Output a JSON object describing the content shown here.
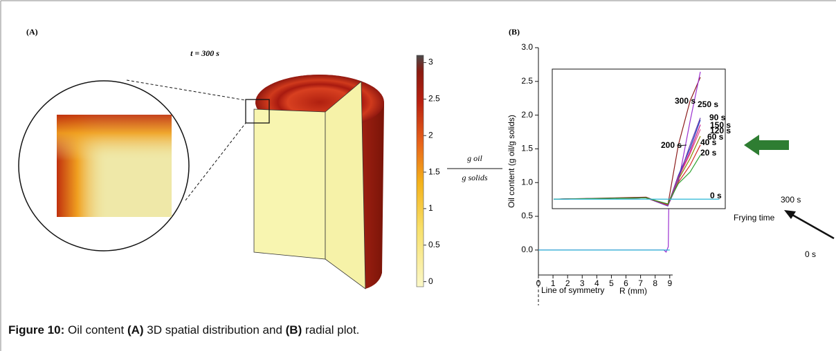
{
  "panel_a": {
    "label": "(A)",
    "time_label": "t = 300 s",
    "colorbar": {
      "lim": [
        -0.07,
        3.1
      ],
      "ticks": [
        0,
        0.5,
        1,
        1.5,
        2,
        2.5,
        3
      ],
      "unit_numerator": "g oil",
      "unit_denominator": "g solids"
    }
  },
  "chart_data": {
    "type": "line",
    "panel_label": "(B)",
    "x_label": "R (mm)",
    "y_label": "Oil content (g oil/g solids)",
    "xlim": [
      0,
      9.2
    ],
    "ylim": [
      -0.37,
      3.0
    ],
    "xticks": [
      0,
      1,
      2,
      3,
      4,
      5,
      6,
      7,
      8,
      9
    ],
    "yticks": [
      {
        "value": 0,
        "label": "0.0"
      },
      0.5,
      {
        "value": 1,
        "label": "1.0"
      },
      1.5,
      {
        "value": 2,
        "label": "2.0"
      },
      2.5,
      {
        "value": 3,
        "label": "3.0"
      }
    ],
    "x": [
      0,
      8.6,
      8.75,
      8.9,
      8.95,
      9.0
    ],
    "series": [
      {
        "name": "300 s",
        "color": "#9b30d0",
        "values": [
          0,
          0,
          -0.03,
          0.05,
          1.0,
          2.4
        ]
      },
      {
        "name": "0 s",
        "color": "#29b6d6",
        "values": [
          0,
          0,
          0,
          0,
          0,
          0
        ]
      }
    ],
    "annotations": [
      "Frying time",
      "Line of symmetry"
    ],
    "inset": {
      "type": "line",
      "xlim": [
        0,
        5.9
      ],
      "ylim": [
        0.61,
        2.67
      ],
      "x": [
        0.05,
        3.2,
        3.94,
        4.3,
        4.7,
        5.05,
        5.7
      ],
      "series": [
        {
          "name": "300 s",
          "color": "#8b1a1a",
          "values": [
            0.75,
            0.78,
            0.66,
            1.55,
            2.2,
            2.55,
            null
          ]
        },
        {
          "name": "250 s",
          "color": "#9b30d0",
          "values": [
            0.75,
            0.77,
            0.65,
            1.0,
            1.9,
            2.63,
            null
          ]
        },
        {
          "name": "90 s",
          "color": "#1f3fbf",
          "values": [
            0.75,
            0.77,
            0.66,
            1.1,
            1.5,
            1.92,
            null
          ]
        },
        {
          "name": "150 s",
          "color": "#c71585",
          "values": [
            0.75,
            0.77,
            0.66,
            1.08,
            1.45,
            1.85,
            null
          ]
        },
        {
          "name": "120 s",
          "color": "#e05090",
          "values": [
            0.75,
            0.77,
            0.66,
            1.06,
            1.42,
            1.78,
            null
          ]
        },
        {
          "name": "60 s",
          "color": "#8c8c00",
          "values": [
            0.75,
            0.77,
            0.67,
            1.04,
            1.35,
            1.68,
            null
          ]
        },
        {
          "name": "200 s",
          "color": "#6a3fb0",
          "values": [
            0.75,
            0.77,
            0.65,
            1.05,
            1.55,
            1.95,
            null
          ]
        },
        {
          "name": "40 s",
          "color": "#d62728",
          "values": [
            0.75,
            0.77,
            0.67,
            1.0,
            1.25,
            1.55,
            null
          ]
        },
        {
          "name": "20 s",
          "color": "#2ca02c",
          "values": [
            0.75,
            0.77,
            0.68,
            0.98,
            1.15,
            1.4,
            null
          ]
        },
        {
          "name": "0 s",
          "color": "#29b6d6",
          "values": [
            0.75,
            0.75,
            0.75,
            0.75,
            0.75,
            0.75,
            0.75
          ]
        }
      ]
    }
  },
  "caption": {
    "label": "Figure 10:",
    "text1": " Oil content ",
    "a": "(A)",
    "text2": " 3D spatial distribution and ",
    "b": "(B)",
    "text3": " radial plot."
  }
}
